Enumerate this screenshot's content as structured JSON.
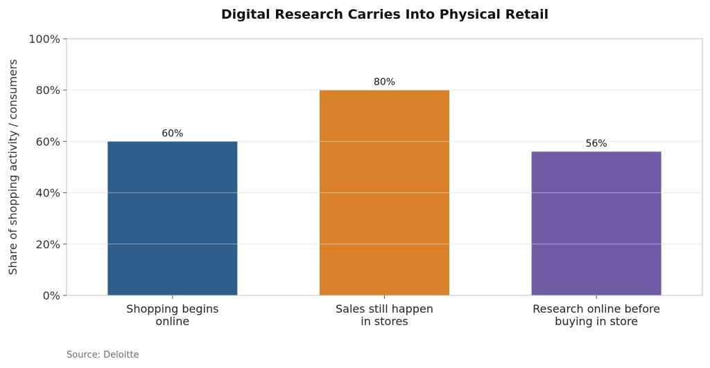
{
  "chart_data": {
    "type": "bar",
    "title": "Digital Research Carries Into Physical Retail",
    "xlabel": "",
    "ylabel": "Share of shopping activity / consumers",
    "categories": [
      [
        "Shopping begins",
        "online"
      ],
      [
        "Sales still happen",
        "in stores"
      ],
      [
        "Research online before",
        "buying in store"
      ]
    ],
    "values": [
      60,
      80,
      56
    ],
    "value_labels": [
      "60%",
      "80%",
      "56%"
    ],
    "colors": [
      "#2e5e8a",
      "#d9822b",
      "#715aa6"
    ],
    "ylim": [
      0,
      100
    ],
    "yticks": [
      0,
      20,
      40,
      60,
      80,
      100
    ],
    "ytick_labels": [
      "0%",
      "20%",
      "40%",
      "60%",
      "80%",
      "100%"
    ],
    "grid": true,
    "source": "Source: Deloitte"
  }
}
